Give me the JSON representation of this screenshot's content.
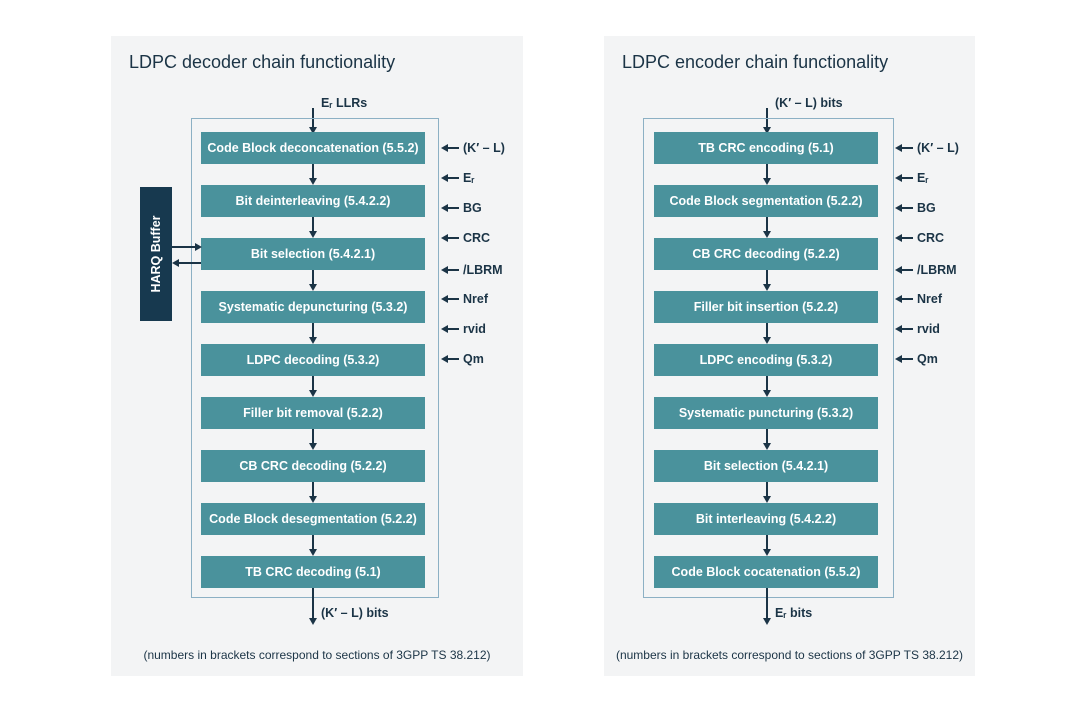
{
  "decoder": {
    "title": "LDPC decoder chain functionality",
    "input_label": "Eᵣ LLRs",
    "output_label": "(K′ – L) bits",
    "blocks": [
      "Code Block deconcatenation (5.5.2)",
      "Bit deinterleaving (5.4.2.2)",
      "Bit selection (5.4.2.1)",
      "Systematic depuncturing (5.3.2)",
      "LDPC decoding (5.3.2)",
      "Filler bit removal (5.2.2)",
      "CB CRC decoding (5.2.2)",
      "Code Block desegmentation (5.2.2)",
      "TB CRC decoding (5.1)"
    ],
    "params": [
      "(K′ – L)",
      "Eᵣ",
      "BG",
      "CRC",
      "/LBRM",
      "Nref",
      "rvid",
      "Qm"
    ],
    "harq_label": "HARQ Buffer",
    "footnote": "(numbers in brackets correspond to sections of 3GPP TS 38.212)"
  },
  "encoder": {
    "title": "LDPC encoder chain functionality",
    "input_label": "(K′ – L) bits",
    "output_label": "Eᵣ bits",
    "blocks": [
      "TB CRC encoding (5.1)",
      "Code Block segmentation (5.2.2)",
      "CB CRC decoding (5.2.2)",
      "Filler bit insertion (5.2.2)",
      "LDPC encoding (5.3.2)",
      "Systematic puncturing (5.3.2)",
      "Bit selection (5.4.2.1)",
      "Bit interleaving (5.4.2.2)",
      "Code Block cocatenation (5.5.2)"
    ],
    "params": [
      "(K′ – L)",
      "Eᵣ",
      "BG",
      "CRC",
      "/LBRM",
      "Nref",
      "rvid",
      "Qm"
    ],
    "footnote": "(numbers in brackets correspond to sections of 3GPP TS 38.212)"
  }
}
